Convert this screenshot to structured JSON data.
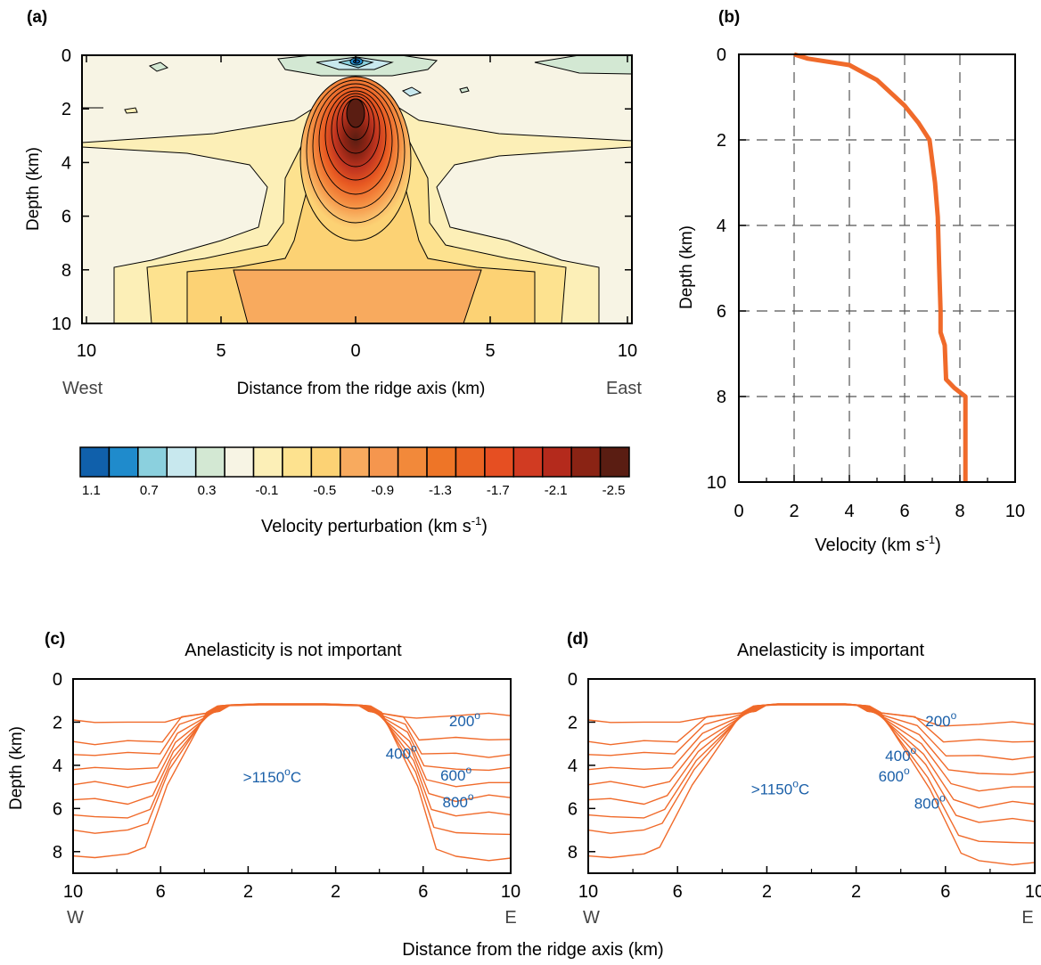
{
  "chart_data": [
    {
      "panel": "(a)",
      "type": "heatmap",
      "title": "",
      "xlabel": "Distance from the ridge axis (km)",
      "ylabel": "Depth (km)",
      "x_ticks": [
        "10",
        "5",
        "0",
        "5",
        "10"
      ],
      "y_ticks": [
        "0",
        "2",
        "4",
        "6",
        "8",
        "10"
      ],
      "xlim": [
        -10,
        10
      ],
      "ylim": [
        0,
        10
      ],
      "direction_labels": {
        "west": "West",
        "east": "East"
      },
      "colorbar": {
        "label": "Velocity perturbation (km s",
        "label_sup": "-1",
        "label_end": ")",
        "tick_labels": [
          "1.1",
          "0.7",
          "0.3",
          "-0.1",
          "-0.5",
          "-0.9",
          "-1.3",
          "-1.7",
          "-2.1",
          "-2.5"
        ],
        "colors": [
          "#1060ab",
          "#1f8bcc",
          "#8bd0de",
          "#c8e8ee",
          "#d3e8d3",
          "#f7f4e4",
          "#fcefb7",
          "#fde28f",
          "#fcd274",
          "#f8aa5e",
          "#f5964e",
          "#f2893a",
          "#ee7527",
          "#ea6423",
          "#e64f22",
          "#d13b22",
          "#b42a1c",
          "#8a2314",
          "#5a1d12"
        ]
      },
      "anomaly": {
        "center_x": 0,
        "center_depth": 2.0,
        "min_value": -2.7,
        "surface_max_value": 1.1,
        "deep_plateau_value": -0.8
      }
    },
    {
      "panel": "(b)",
      "type": "line",
      "title": "",
      "xlabel": "Velocity (km s",
      "xlabel_sup": "-1",
      "xlabel_end": ")",
      "ylabel": "Depth (km)",
      "xlim": [
        0,
        10
      ],
      "ylim": [
        0,
        10
      ],
      "x_ticks": [
        "0",
        "2",
        "4",
        "6",
        "8",
        "10"
      ],
      "y_ticks": [
        "0",
        "2",
        "4",
        "6",
        "8",
        "10"
      ],
      "grid": true,
      "line_color": "#f06a2a",
      "series": [
        {
          "velocity": [
            2.0,
            2.5,
            4.0,
            5.0,
            6.0,
            6.5,
            6.9,
            7.1,
            7.2,
            7.25,
            7.3,
            7.3,
            7.45,
            7.5,
            7.8,
            8.2,
            8.2
          ],
          "depth": [
            0.0,
            0.1,
            0.25,
            0.6,
            1.2,
            1.6,
            2.0,
            3.0,
            3.8,
            5.0,
            6.0,
            6.5,
            6.8,
            7.6,
            7.8,
            8.0,
            10.0
          ]
        }
      ]
    },
    {
      "panel": "(c)",
      "type": "line",
      "title": "Anelasticity is not important",
      "ylabel": "Depth (km)",
      "x_ticks": [
        "10",
        "6",
        "2",
        "2",
        "6",
        "10"
      ],
      "y_ticks": [
        "0",
        "2",
        "4",
        "6",
        "8"
      ],
      "xlim": [
        -10,
        10
      ],
      "ylim": [
        0,
        9
      ],
      "direction_labels": {
        "west": "W",
        "east": "E"
      },
      "isotherm_labels": [
        "200",
        "400",
        "600",
        "800"
      ],
      "degree_mark": "o",
      "core_label": ">1150",
      "core_unit": "C",
      "line_color": "#f06a2a",
      "label_color": "#1a5fa8",
      "isotherms": {
        "far_depth_west": [
          1.9,
          2.9,
          3.5,
          4.2,
          4.9,
          5.6,
          6.3,
          7.0,
          8.2
        ],
        "far_depth_east": [
          1.7,
          2.8,
          3.5,
          4.1,
          4.8,
          5.5,
          6.3,
          7.2,
          8.3
        ],
        "top_depth": 1.15,
        "plateau_halfwidth": [
          3.3,
          3.5
        ],
        "base_halfwidth": [
          5.8,
          5.7
        ]
      }
    },
    {
      "panel": "(d)",
      "type": "line",
      "title": "Anelasticity is important",
      "ylabel": "",
      "x_ticks": [
        "10",
        "6",
        "2",
        "2",
        "6",
        "10"
      ],
      "y_ticks": [
        "0",
        "2",
        "4",
        "6",
        "8"
      ],
      "xlim": [
        -10,
        10
      ],
      "ylim": [
        0,
        9
      ],
      "direction_labels": {
        "west": "W",
        "east": "E"
      },
      "isotherm_labels": [
        "200",
        "400",
        "600",
        "800"
      ],
      "degree_mark": "o",
      "core_label": ">1150",
      "core_unit": "C",
      "line_color": "#f06a2a",
      "label_color": "#1a5fa8",
      "isotherms": {
        "far_depth_west": [
          1.9,
          2.9,
          3.5,
          4.2,
          4.9,
          5.6,
          6.3,
          7.0,
          8.2
        ],
        "far_depth_east": [
          2.1,
          2.9,
          3.6,
          4.3,
          5.0,
          5.8,
          6.6,
          7.6,
          8.5
        ],
        "top_depth": 1.15,
        "plateau_halfwidth": [
          2.5,
          2.5
        ],
        "base_halfwidth": [
          5.9,
          5.8
        ]
      }
    }
  ],
  "figure": {
    "panel_labels": [
      "(a)",
      "(b)",
      "(c)",
      "(d)"
    ],
    "shared_xlabel": "Distance from the ridge axis (km)"
  }
}
